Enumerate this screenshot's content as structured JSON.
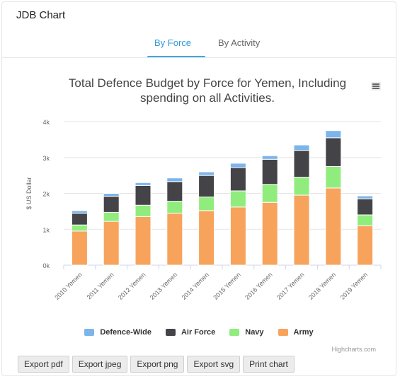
{
  "card": {
    "title": "JDB Chart"
  },
  "tabs": [
    {
      "label": "By Force",
      "active": true
    },
    {
      "label": "By Activity",
      "active": false
    }
  ],
  "chart_title_line1": "Total Defence Budget by Force for Yemen, Including",
  "chart_title_line2": "spending on all Activities.",
  "credits": "Highcharts.com",
  "export_buttons": [
    "Export pdf",
    "Export jpeg",
    "Export png",
    "Export svg",
    "Print chart"
  ],
  "colors": {
    "Defence-Wide": "#7cb5ec",
    "Air Force": "#434348",
    "Navy": "#90ed7d",
    "Army": "#f7a35c",
    "active_tab": "#2f97d6"
  },
  "chart_data": {
    "type": "bar",
    "stacked": true,
    "title": "Total Defence Budget by Force for Yemen, Including spending on all Activities.",
    "ylabel": "$ US Dollar",
    "ylim": [
      0,
      4
    ],
    "yticks": [
      "0k",
      "1k",
      "2k",
      "3k",
      "4k"
    ],
    "categories": [
      "2010 Yemen",
      "2011 Yemen",
      "2012 Yemen",
      "2013 Yemen",
      "2014 Yemen",
      "2015 Yemen",
      "2016 Yemen",
      "2017 Yemen",
      "2018 Yemen",
      "2019 Yemen"
    ],
    "series": [
      {
        "name": "Army",
        "values": [
          0.95,
          1.22,
          1.35,
          1.45,
          1.52,
          1.62,
          1.75,
          1.95,
          2.15,
          1.1
        ]
      },
      {
        "name": "Navy",
        "values": [
          0.17,
          0.25,
          0.32,
          0.33,
          0.38,
          0.45,
          0.5,
          0.5,
          0.6,
          0.3
        ]
      },
      {
        "name": "Air Force",
        "values": [
          0.33,
          0.45,
          0.55,
          0.55,
          0.6,
          0.65,
          0.7,
          0.75,
          0.8,
          0.45
        ]
      },
      {
        "name": "Defence-Wide",
        "values": [
          0.07,
          0.08,
          0.08,
          0.1,
          0.1,
          0.12,
          0.1,
          0.15,
          0.2,
          0.08
        ]
      }
    ],
    "legend": [
      "Defence-Wide",
      "Air Force",
      "Navy",
      "Army"
    ],
    "grid": true,
    "legend_position": "bottom"
  }
}
